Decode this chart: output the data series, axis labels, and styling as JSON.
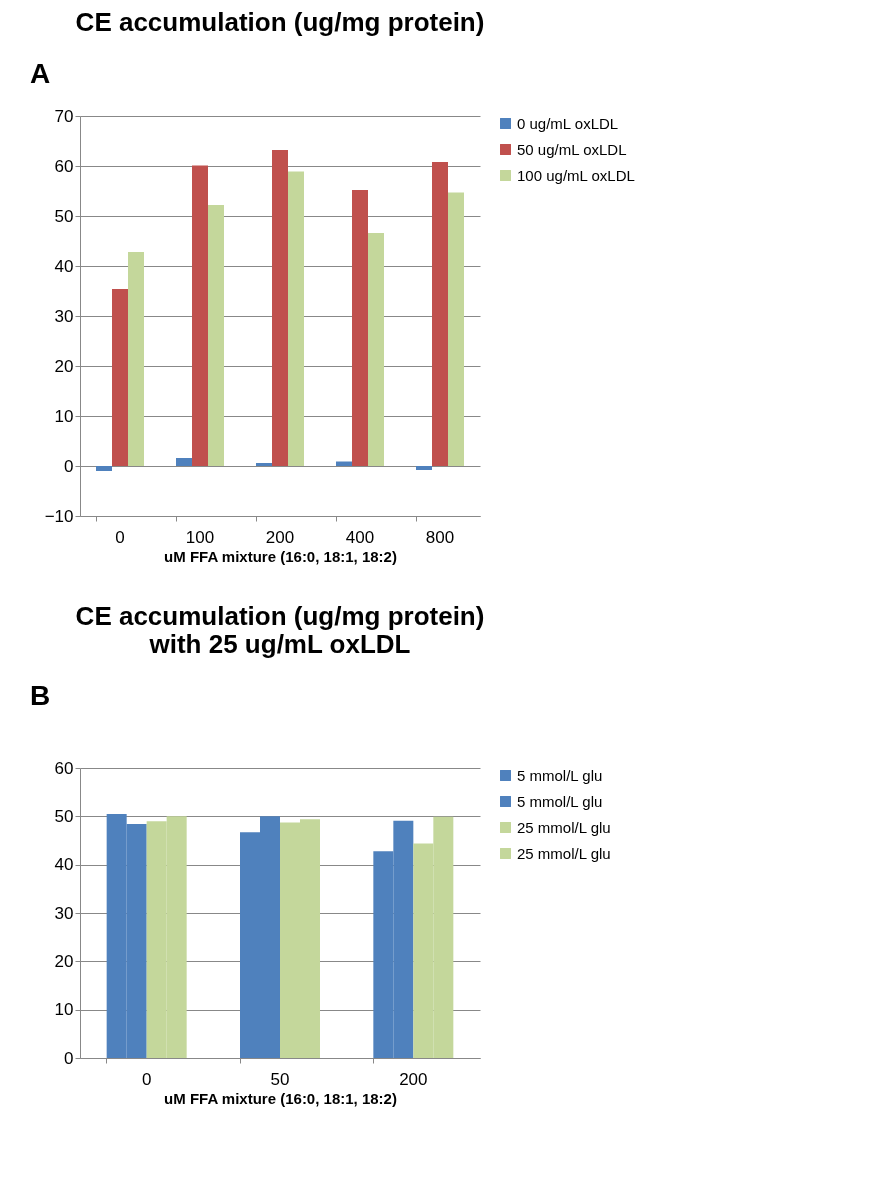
{
  "chart_data": [
    {
      "type": "bar",
      "title": "CE accumulation (ug/mg protein)",
      "xlabel": "uM FFA mixture (16:0, 18:1, 18:2)",
      "annotations": [
        "A"
      ],
      "categories": [
        "0",
        "100",
        "200",
        "400",
        "800"
      ],
      "series": [
        {
          "name": "0 ug/mL oxLDL",
          "color": "#4f81bd",
          "values": [
            -1.0,
            1.6,
            0.6,
            0.9,
            -0.8
          ]
        },
        {
          "name": "50 ug/mL oxLDL",
          "color": "#c0504d",
          "values": [
            35.4,
            60.1,
            63.2,
            55.2,
            60.8
          ]
        },
        {
          "name": "100 ug/mL oxLDL",
          "color": "#c4d79b",
          "values": [
            42.8,
            52.2,
            58.9,
            46.6,
            54.7
          ]
        }
      ],
      "ylim": [
        -10,
        70
      ],
      "yticks": [
        -10,
        0,
        10,
        20,
        30,
        40,
        50,
        60,
        70
      ],
      "grid": "y",
      "legend": "right"
    },
    {
      "type": "bar",
      "title": "CE accumulation (ug/mg protein)\nwith 25 ug/mL oxLDL",
      "xlabel": "uM FFA mixture (16:0, 18:1, 18:2)",
      "annotations": [
        "B"
      ],
      "categories": [
        "0",
        "50",
        "200"
      ],
      "series": [
        {
          "name": "5 mmol/L glu",
          "color": "#4f81bd",
          "values": [
            50.5,
            46.7,
            42.8
          ]
        },
        {
          "name": "5 mmol/L glu",
          "color": "#4f81bd",
          "values": [
            48.4,
            50.0,
            49.1
          ]
        },
        {
          "name": "25 mmol/L glu",
          "color": "#c4d79b",
          "values": [
            49.0,
            48.7,
            44.4
          ]
        },
        {
          "name": "25 mmol/L glu",
          "color": "#c4d79b",
          "values": [
            50.0,
            49.4,
            49.9
          ]
        }
      ],
      "ylim": [
        0,
        60
      ],
      "yticks": [
        0,
        10,
        20,
        30,
        40,
        50,
        60
      ],
      "grid": "y",
      "legend": "right"
    }
  ]
}
